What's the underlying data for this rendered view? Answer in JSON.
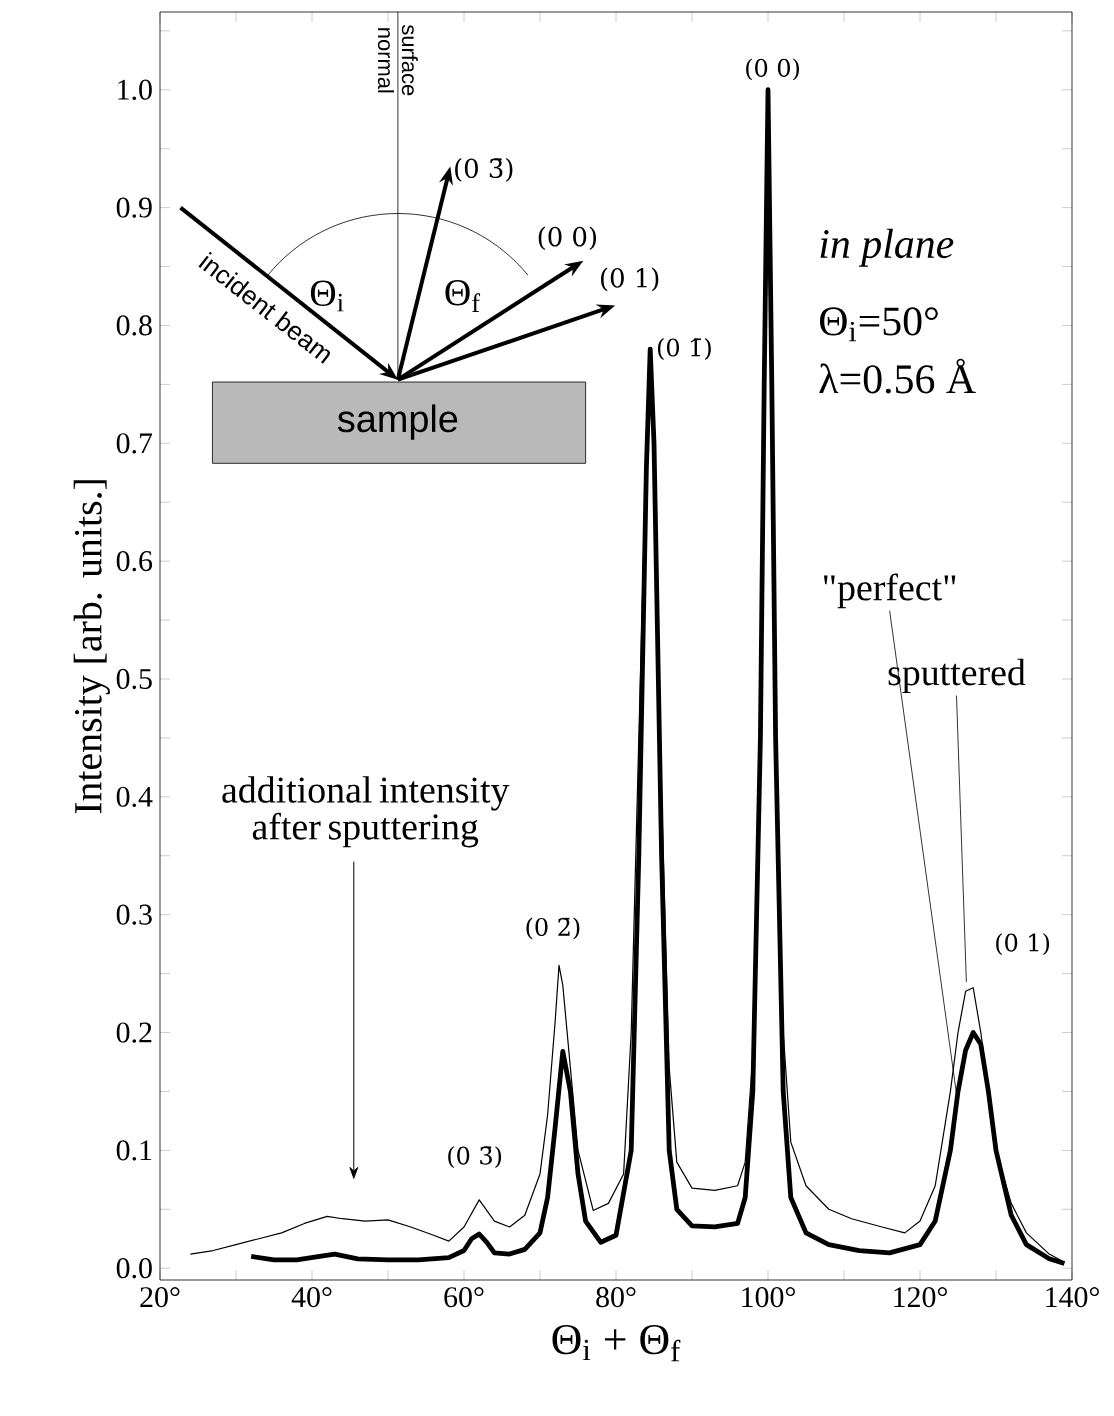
{
  "chart_data": {
    "type": "line",
    "xlabel": "Θ$_{i}$ + Θ$_{f}$",
    "ylabel": "Intensity [arb. units.]",
    "xlim": [
      20,
      140
    ],
    "ylim": [
      -0.01,
      1.066
    ],
    "xticks": [
      {
        "value": 20,
        "label": "20°"
      },
      {
        "value": 30,
        "label": null
      },
      {
        "value": 40,
        "label": "40°"
      },
      {
        "value": 50,
        "label": null
      },
      {
        "value": 60,
        "label": "60°"
      },
      {
        "value": 70,
        "label": null
      },
      {
        "value": 80,
        "label": "80°"
      },
      {
        "value": 90,
        "label": null
      },
      {
        "value": 100,
        "label": "100°"
      },
      {
        "value": 110,
        "label": null
      },
      {
        "value": 120,
        "label": "120°"
      },
      {
        "value": 130,
        "label": null
      },
      {
        "value": 140,
        "label": "140°"
      }
    ],
    "yticks": [
      {
        "value": 0,
        "label": "0.0"
      },
      {
        "value": 0.05,
        "label": null
      },
      0.1,
      {
        "value": 0.15,
        "label": null
      },
      0.2,
      {
        "value": 0.25,
        "label": null
      },
      0.3,
      {
        "value": 0.35,
        "label": null
      },
      0.4,
      {
        "value": 0.45,
        "label": null
      },
      0.5,
      {
        "value": 0.55,
        "label": null
      },
      0.6,
      {
        "value": 0.65,
        "label": null
      },
      0.7,
      {
        "value": 0.75,
        "label": null
      },
      0.8,
      {
        "value": 0.85,
        "label": null
      },
      0.9,
      {
        "value": 0.95,
        "label": null
      },
      {
        "value": 1,
        "label": "1.0"
      },
      {
        "value": 1.05,
        "label": null
      }
    ],
    "marker": "none",
    "line_style": "solid",
    "series": [
      {
        "color": "#000000",
        "x": [
          24,
          27,
          30,
          33,
          36,
          39,
          42,
          44,
          47,
          50,
          53,
          56,
          58,
          60,
          62,
          64,
          66,
          68,
          70,
          71,
          72,
          72.5,
          73,
          74,
          75,
          77,
          79,
          81,
          82,
          83,
          84,
          84.5,
          85,
          86,
          87,
          88,
          90,
          93,
          96,
          97,
          98,
          99,
          99.5,
          100,
          100.5,
          101,
          102,
          103,
          105,
          108,
          111,
          115,
          118,
          120,
          122,
          124,
          125,
          126,
          127,
          128,
          129,
          130,
          132,
          134,
          137,
          139
        ],
        "values": [
          0.012,
          0.015,
          0.02,
          0.025,
          0.03,
          0.038,
          0.044,
          0.042,
          0.04,
          0.041,
          0.035,
          0.028,
          0.023,
          0.035,
          0.058,
          0.04,
          0.035,
          0.045,
          0.08,
          0.13,
          0.21,
          0.257,
          0.24,
          0.17,
          0.1,
          0.049,
          0.055,
          0.08,
          0.2,
          0.45,
          0.7,
          0.78,
          0.72,
          0.4,
          0.17,
          0.09,
          0.068,
          0.066,
          0.07,
          0.09,
          0.18,
          0.45,
          0.75,
          0.97,
          0.75,
          0.45,
          0.2,
          0.107,
          0.07,
          0.05,
          0.042,
          0.035,
          0.03,
          0.04,
          0.07,
          0.15,
          0.2,
          0.235,
          0.238,
          0.2,
          0.15,
          0.1,
          0.055,
          0.03,
          0.012,
          0.005
        ]
      },
      {
        "color": "#000000",
        "x": [
          32,
          35,
          38,
          41,
          43,
          46,
          50,
          54,
          58,
          60,
          61,
          62,
          63,
          64,
          66,
          68,
          70,
          71,
          72,
          73,
          74,
          75,
          76,
          78,
          80,
          82,
          83,
          84,
          84.5,
          85,
          86,
          87,
          88,
          90,
          93,
          96,
          97,
          98,
          99,
          99.5,
          100,
          100.5,
          101,
          102,
          103,
          105,
          108,
          112,
          116,
          120,
          122,
          124,
          125,
          126,
          127,
          128,
          129,
          130,
          132,
          134,
          137,
          139
        ],
        "values": [
          0.01,
          0.007,
          0.007,
          0.01,
          0.012,
          0.008,
          0.007,
          0.007,
          0.009,
          0.015,
          0.025,
          0.029,
          0.022,
          0.013,
          0.012,
          0.016,
          0.03,
          0.06,
          0.12,
          0.184,
          0.15,
          0.08,
          0.04,
          0.022,
          0.028,
          0.1,
          0.35,
          0.68,
          0.78,
          0.7,
          0.35,
          0.1,
          0.05,
          0.036,
          0.035,
          0.038,
          0.06,
          0.15,
          0.45,
          0.75,
          1.0,
          0.75,
          0.45,
          0.15,
          0.06,
          0.03,
          0.02,
          0.015,
          0.013,
          0.02,
          0.04,
          0.1,
          0.15,
          0.185,
          0.2,
          0.19,
          0.15,
          0.1,
          0.045,
          0.02,
          0.008,
          0.004
        ]
      }
    ],
    "annotations": [
      {
        "text": "(0 0)",
        "x": 100,
        "y": 1.0
      },
      {
        "text": "(0 1̄)",
        "x": 84.5,
        "y": 0.78
      },
      {
        "text": "(0 2̄)",
        "x": 72.5,
        "y": 0.257
      },
      {
        "text": "(0 3̄)",
        "x": 62,
        "y": 0.058
      },
      {
        "text": "(0 1)",
        "x": 127,
        "y": 0.238
      },
      {
        "text": "\"perfect\"",
        "x": 124.8,
        "y": 0.148
      },
      {
        "text": "sputtered",
        "x": 126.1,
        "y": 0.243
      },
      "additional intensity after sputtering",
      "in plane",
      "Θ$_{i}$=50°",
      "λ=0.56 Å",
      "incident beam",
      "surface normal",
      "Θ$_{i}$",
      "Θ$_{f}$",
      "(0 3̄)",
      "(0 0)",
      "(0 1)",
      "sample"
    ]
  }
}
